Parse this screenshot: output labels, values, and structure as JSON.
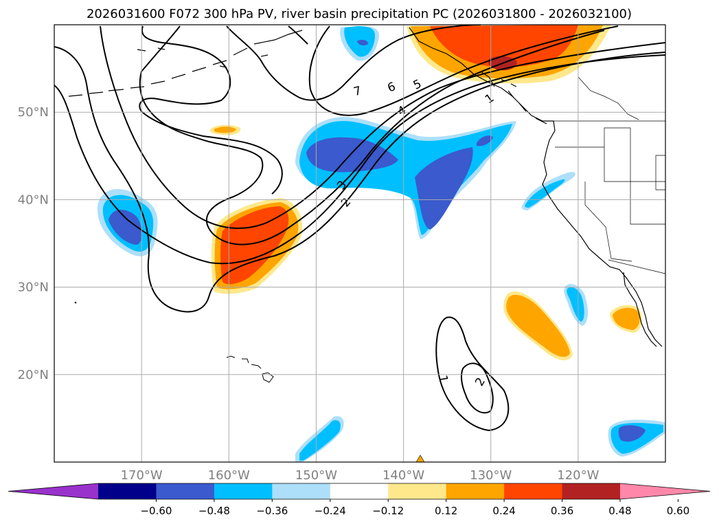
{
  "title": "2026031600 F072 300 hPa PV, river basin precipitation PC (2026031800 - 2026032100)",
  "map": {
    "projection": "PlateCarree",
    "lon_range": [
      -180,
      -110
    ],
    "lat_range": [
      10,
      60
    ],
    "lat_ticks": [
      {
        "value": 20,
        "label": "20°N"
      },
      {
        "value": 30,
        "label": "30°N"
      },
      {
        "value": 40,
        "label": "40°N"
      },
      {
        "value": 50,
        "label": "50°N"
      }
    ],
    "lon_ticks": [
      {
        "value": -170,
        "label": "170°W"
      },
      {
        "value": -160,
        "label": "160°W"
      },
      {
        "value": -150,
        "label": "150°W"
      },
      {
        "value": -140,
        "label": "140°W"
      },
      {
        "value": -130,
        "label": "130°W"
      },
      {
        "value": -120,
        "label": "120°W"
      }
    ],
    "grid": true
  },
  "colorbar": {
    "extend": "both",
    "colors": [
      "#9932CC",
      "#00008B",
      "#3A5ACD",
      "#00BFFF",
      "#ADDFFA",
      "#FFFFFF",
      "#FFE88C",
      "#FFA500",
      "#FF4500",
      "#B22222",
      "#FF88AA"
    ],
    "labels": [
      "−0.60",
      "−0.48",
      "−0.36",
      "−0.24",
      "−0.12",
      "0.12",
      "0.24",
      "0.36",
      "0.48",
      "0.60"
    ]
  },
  "pv_contour_labels": [
    "1",
    "2",
    "3",
    "4",
    "5",
    "6",
    "7",
    "1",
    "2"
  ],
  "precip_pc_regions": [
    {
      "name": "northeast-pacific-gulf-alaska",
      "sign": "positive",
      "max_level": 0.48
    },
    {
      "name": "subtropical-pacific-160W",
      "sign": "positive",
      "max_level": 0.36
    },
    {
      "name": "central-pacific-jet",
      "sign": "negative",
      "max_level": -0.36
    },
    {
      "name": "west-pacific-170W",
      "sign": "negative",
      "max_level": -0.36
    },
    {
      "name": "baja-coast",
      "sign": "positive",
      "max_level": 0.24
    },
    {
      "name": "southwest-ocean-blob",
      "sign": "positive",
      "max_level": 0.24
    },
    {
      "name": "southeast-corner",
      "sign": "negative",
      "max_level": -0.36
    }
  ]
}
